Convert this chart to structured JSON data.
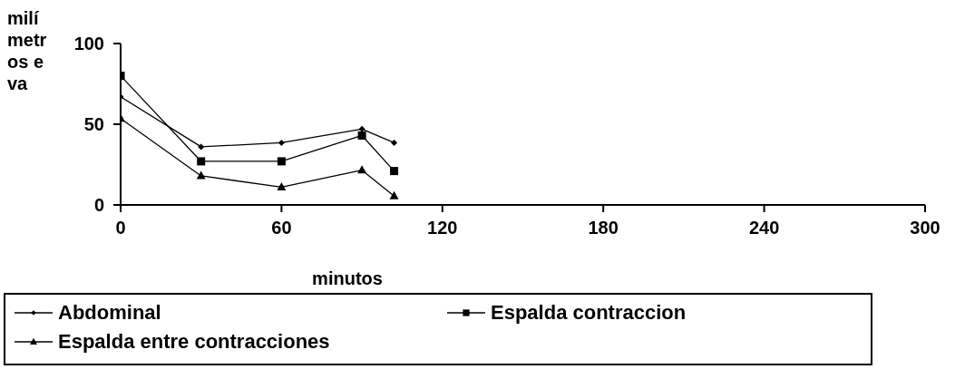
{
  "chart_data": {
    "type": "line",
    "xlabel": "minutos",
    "ylabel": "milímetros eva",
    "x": [
      0,
      30,
      60,
      90,
      102
    ],
    "xlim": [
      0,
      300
    ],
    "xticks": [
      0,
      60,
      120,
      180,
      240,
      300
    ],
    "ylim": [
      0,
      100
    ],
    "yticks": [
      0,
      50,
      100
    ],
    "grid": false,
    "legend": "bottom",
    "series": [
      {
        "name": "Abdominal",
        "color": "#000000",
        "marker": "diamond",
        "values": [
          67,
          36,
          38.5,
          47,
          38.5
        ]
      },
      {
        "name": "Espalda contraccion",
        "color": "#000000",
        "marker": "square",
        "values": [
          80,
          27,
          27,
          43,
          21
        ]
      },
      {
        "name": "Espalda entre contracciones",
        "color": "#000000",
        "marker": "triangle",
        "values": [
          53.5,
          18,
          11,
          21.5,
          5.5
        ]
      }
    ]
  }
}
